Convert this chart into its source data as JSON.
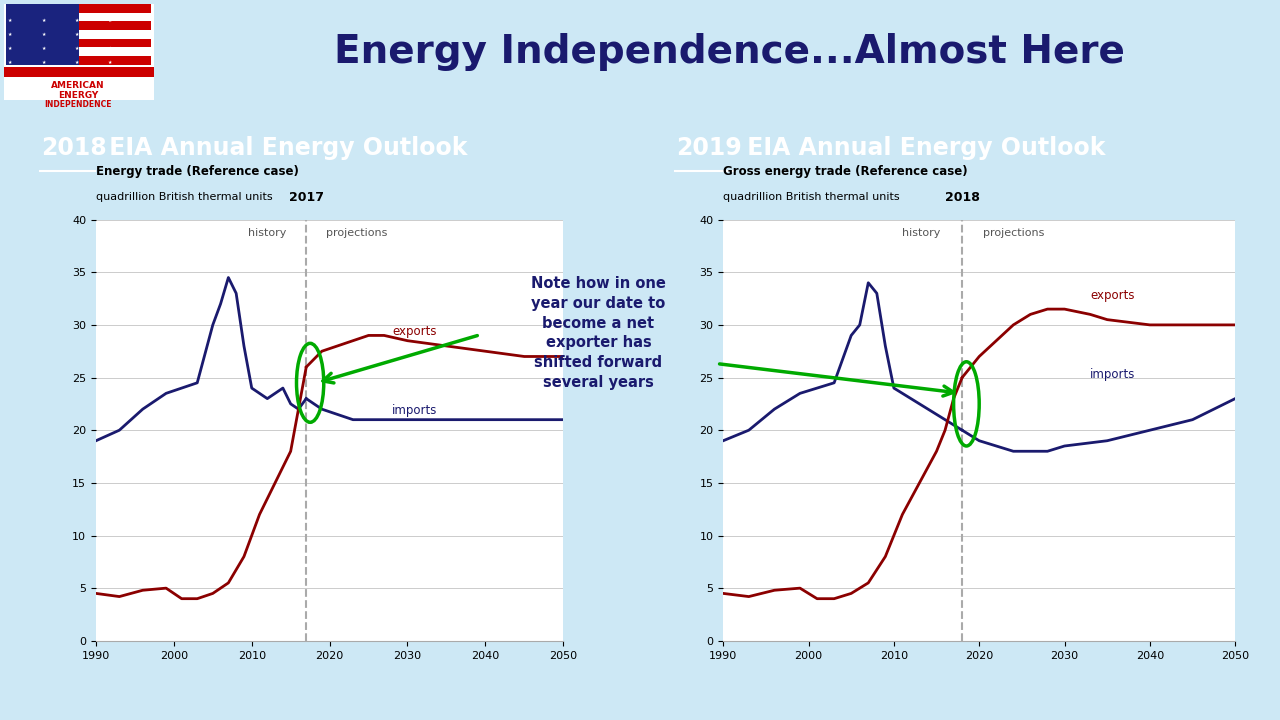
{
  "bg_header_color": "#cde8f5",
  "bg_panel_color": "#5f7fa0",
  "bg_white": "#ffffff",
  "title": "Energy Independence...Almost Here",
  "title_color": "#1a1a6e",
  "left_panel_title_year": "2018",
  "left_panel_title_rest": " EIA Annual Energy Outlook",
  "right_panel_title_year": "2019",
  "right_panel_title_rest": " EIA Annual Energy Outlook",
  "chart1_title_line1": "Energy trade (Reference case)",
  "chart1_title_line2": "quadrillion British thermal units",
  "chart1_divider_year": 2017,
  "chart1_label_history": "history",
  "chart1_label_projections": "projections",
  "chart1_label_exports": "exports",
  "chart1_label_imports": "imports",
  "chart2_title_line1": "Gross energy trade (Reference case)",
  "chart2_title_line2": "quadrillion British thermal units",
  "chart2_divider_year": 2018,
  "chart2_label_history": "history",
  "chart2_label_projections": "projections",
  "chart2_label_exports": "exports",
  "chart2_label_imports": "imports",
  "note_text": "Note how in one\nyear our date to\nbecome a net\nexporter has\nshifted forward\nseveral years",
  "note_bg": "#c8d8f0",
  "note_text_color": "#1a1a6e",
  "xlim": [
    1990,
    2050
  ],
  "ylim": [
    0,
    40
  ],
  "yticks": [
    0,
    5,
    10,
    15,
    20,
    25,
    30,
    35,
    40
  ],
  "xticks": [
    1990,
    2000,
    2010,
    2020,
    2030,
    2040,
    2050
  ],
  "exports_color": "#8b0000",
  "imports_color": "#1a1a6e",
  "divider_color": "#aaaaaa",
  "arrow_color": "#00aa00",
  "circle_color": "#00aa00",
  "chart1_imp_x": [
    1990,
    1993,
    1996,
    1999,
    2001,
    2003,
    2005,
    2006,
    2007,
    2008,
    2009,
    2010,
    2011,
    2012,
    2013,
    2014,
    2015,
    2016,
    2017
  ],
  "chart1_imp_y": [
    19,
    20,
    22,
    23.5,
    24,
    24.5,
    30,
    32,
    34.5,
    33,
    28,
    24,
    23.5,
    23,
    23.5,
    24,
    22.5,
    22,
    23
  ],
  "chart1_imp_proj_x": [
    2017,
    2019,
    2021,
    2023,
    2025,
    2027,
    2030,
    2035,
    2040,
    2045,
    2050
  ],
  "chart1_imp_proj_y": [
    23,
    22,
    21.5,
    21,
    21,
    21,
    21,
    21,
    21,
    21,
    21
  ],
  "chart1_exp_x": [
    1990,
    1993,
    1996,
    1999,
    2001,
    2003,
    2005,
    2007,
    2009,
    2011,
    2013,
    2015,
    2016,
    2017
  ],
  "chart1_exp_y": [
    4.5,
    4.2,
    4.8,
    5.0,
    4.0,
    4.0,
    4.5,
    5.5,
    8.0,
    12,
    15,
    18,
    22,
    26
  ],
  "chart1_exp_proj_x": [
    2017,
    2019,
    2021,
    2023,
    2025,
    2027,
    2030,
    2035,
    2040,
    2045,
    2050
  ],
  "chart1_exp_proj_y": [
    26,
    27.5,
    28,
    28.5,
    29,
    29,
    28.5,
    28,
    27.5,
    27,
    27
  ],
  "chart2_imp_x": [
    1990,
    1993,
    1996,
    1999,
    2001,
    2003,
    2005,
    2006,
    2007,
    2008,
    2009,
    2010,
    2011,
    2012,
    2013,
    2014,
    2015,
    2016,
    2017,
    2018
  ],
  "chart2_imp_y": [
    19,
    20,
    22,
    23.5,
    24,
    24.5,
    29,
    30,
    34,
    33,
    28,
    24,
    23.5,
    23,
    22.5,
    22,
    21.5,
    21,
    20.5,
    20
  ],
  "chart2_imp_proj_x": [
    2018,
    2020,
    2022,
    2024,
    2026,
    2028,
    2030,
    2035,
    2040,
    2045,
    2050
  ],
  "chart2_imp_proj_y": [
    20,
    19,
    18.5,
    18,
    18,
    18,
    18.5,
    19,
    20,
    21,
    23
  ],
  "chart2_exp_x": [
    1990,
    1993,
    1996,
    1999,
    2001,
    2003,
    2005,
    2007,
    2009,
    2011,
    2013,
    2015,
    2016,
    2017,
    2018
  ],
  "chart2_exp_y": [
    4.5,
    4.2,
    4.8,
    5.0,
    4.0,
    4.0,
    4.5,
    5.5,
    8.0,
    12,
    15,
    18,
    20,
    23,
    25
  ],
  "chart2_exp_proj_x": [
    2018,
    2020,
    2022,
    2024,
    2026,
    2028,
    2030,
    2033,
    2035,
    2040,
    2045,
    2050
  ],
  "chart2_exp_proj_y": [
    25,
    27,
    28.5,
    30,
    31,
    31.5,
    31.5,
    31,
    30.5,
    30,
    30,
    30
  ],
  "bottom_bar_color": "#1a3a5c"
}
